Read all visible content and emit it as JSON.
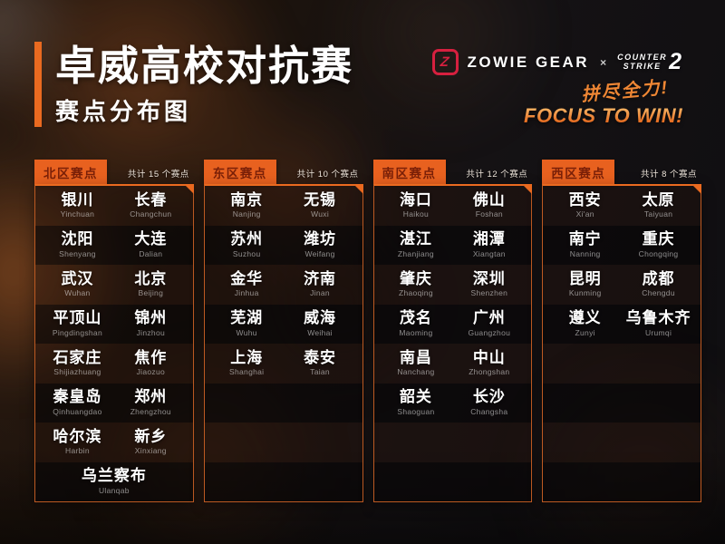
{
  "title": {
    "main": "卓威高校对抗赛",
    "sub": "赛点分布图"
  },
  "brand": {
    "zowie_icon": "Z",
    "zowie_label": "ZOWIE GEAR",
    "separator": "×",
    "cs_word1": "COUNTER",
    "cs_word2": "STRIKE",
    "cs_number": "2"
  },
  "slogan": {
    "cn": "拼尽全力!",
    "en": "FOCUS TO WIN!"
  },
  "colors": {
    "accent_orange": "#EA6A20",
    "tab_text": "#7A2008",
    "zowie_red": "#D6203F",
    "slogan_gradient_top": "#F9BB6B",
    "slogan_gradient_bottom": "#E05A10",
    "panel_border": "#BD5A22"
  },
  "layout": {
    "rows_per_panel": 8
  },
  "regions": [
    {
      "id": "north",
      "name": "北区赛点",
      "count": 15,
      "count_label": "共计 15 个赛点",
      "cities": [
        {
          "cn": "银川",
          "py": "Yinchuan"
        },
        {
          "cn": "长春",
          "py": "Changchun"
        },
        {
          "cn": "沈阳",
          "py": "Shenyang"
        },
        {
          "cn": "大连",
          "py": "Dalian"
        },
        {
          "cn": "武汉",
          "py": "Wuhan"
        },
        {
          "cn": "北京",
          "py": "Beijing"
        },
        {
          "cn": "平顶山",
          "py": "Pingdingshan"
        },
        {
          "cn": "锦州",
          "py": "Jinzhou"
        },
        {
          "cn": "石家庄",
          "py": "Shijiazhuang"
        },
        {
          "cn": "焦作",
          "py": "Jiaozuo"
        },
        {
          "cn": "秦皇岛",
          "py": "Qinhuangdao"
        },
        {
          "cn": "郑州",
          "py": "Zhengzhou"
        },
        {
          "cn": "哈尔滨",
          "py": "Harbin"
        },
        {
          "cn": "新乡",
          "py": "Xinxiang"
        },
        {
          "cn": "乌兰察布",
          "py": "Ulanqab"
        }
      ]
    },
    {
      "id": "east",
      "name": "东区赛点",
      "count": 10,
      "count_label": "共计 10 个赛点",
      "cities": [
        {
          "cn": "南京",
          "py": "Nanjing"
        },
        {
          "cn": "无锡",
          "py": "Wuxi"
        },
        {
          "cn": "苏州",
          "py": "Suzhou"
        },
        {
          "cn": "潍坊",
          "py": "Weifang"
        },
        {
          "cn": "金华",
          "py": "Jinhua"
        },
        {
          "cn": "济南",
          "py": "Jinan"
        },
        {
          "cn": "芜湖",
          "py": "Wuhu"
        },
        {
          "cn": "威海",
          "py": "Weihai"
        },
        {
          "cn": "上海",
          "py": "Shanghai"
        },
        {
          "cn": "泰安",
          "py": "Taian"
        }
      ]
    },
    {
      "id": "south",
      "name": "南区赛点",
      "count": 12,
      "count_label": "共计 12 个赛点",
      "cities": [
        {
          "cn": "海口",
          "py": "Haikou"
        },
        {
          "cn": "佛山",
          "py": "Foshan"
        },
        {
          "cn": "湛江",
          "py": "Zhanjiang"
        },
        {
          "cn": "湘潭",
          "py": "Xiangtan"
        },
        {
          "cn": "肇庆",
          "py": "Zhaoqing"
        },
        {
          "cn": "深圳",
          "py": "Shenzhen"
        },
        {
          "cn": "茂名",
          "py": "Maoming"
        },
        {
          "cn": "广州",
          "py": "Guangzhou"
        },
        {
          "cn": "南昌",
          "py": "Nanchang"
        },
        {
          "cn": "中山",
          "py": "Zhongshan"
        },
        {
          "cn": "韶关",
          "py": "Shaoguan"
        },
        {
          "cn": "长沙",
          "py": "Changsha"
        }
      ]
    },
    {
      "id": "west",
      "name": "西区赛点",
      "count": 8,
      "count_label": "共计 8 个赛点",
      "cities": [
        {
          "cn": "西安",
          "py": "Xi'an"
        },
        {
          "cn": "太原",
          "py": "Taiyuan"
        },
        {
          "cn": "南宁",
          "py": "Nanning"
        },
        {
          "cn": "重庆",
          "py": "Chongqing"
        },
        {
          "cn": "昆明",
          "py": "Kunming"
        },
        {
          "cn": "成都",
          "py": "Chengdu"
        },
        {
          "cn": "遵义",
          "py": "Zunyi"
        },
        {
          "cn": "乌鲁木齐",
          "py": "Urumqi"
        }
      ]
    }
  ]
}
